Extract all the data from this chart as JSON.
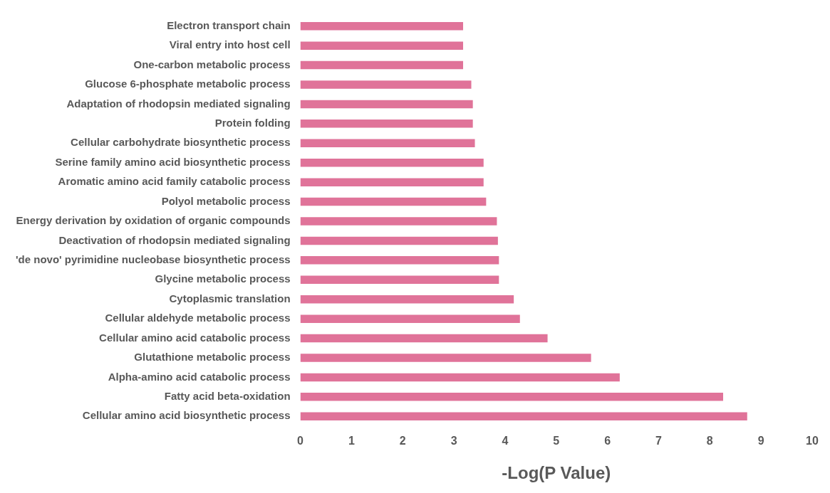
{
  "chart_data": {
    "type": "bar",
    "orientation": "horizontal",
    "xlabel": "-Log(P Value)",
    "categories": [
      "Electron transport chain",
      "Viral entry into host cell",
      "One-carbon metabolic process",
      "Glucose 6-phosphate metabolic process",
      "Adaptation of rhodopsin mediated signaling",
      "Protein folding",
      "Cellular carbohydrate biosynthetic process",
      "Serine family amino acid biosynthetic process",
      "Aromatic amino acid family catabolic process",
      "Polyol metabolic process",
      "Energy derivation by oxidation of organic compounds",
      "Deactivation of rhodopsin mediated signaling",
      "'de novo' pyrimidine nucleobase biosynthetic process",
      "Glycine metabolic process",
      "Cytoplasmic translation",
      "Cellular aldehyde metabolic process",
      "Cellular amino acid catabolic process",
      "Glutathione metabolic process",
      "Alpha-amino acid catabolic process",
      "Fatty acid beta-oxidation",
      "Cellular amino acid biosynthetic process"
    ],
    "values": [
      3.18,
      3.18,
      3.18,
      3.34,
      3.37,
      3.37,
      3.41,
      3.58,
      3.58,
      3.63,
      3.84,
      3.86,
      3.88,
      3.88,
      4.17,
      4.29,
      4.83,
      5.68,
      6.24,
      8.26,
      8.73
    ],
    "color": "#e07399",
    "xlim": [
      0,
      10
    ],
    "xticks": [
      0,
      1,
      2,
      3,
      4,
      5,
      6,
      7,
      8,
      9,
      10
    ],
    "grid": false,
    "legend": false
  }
}
